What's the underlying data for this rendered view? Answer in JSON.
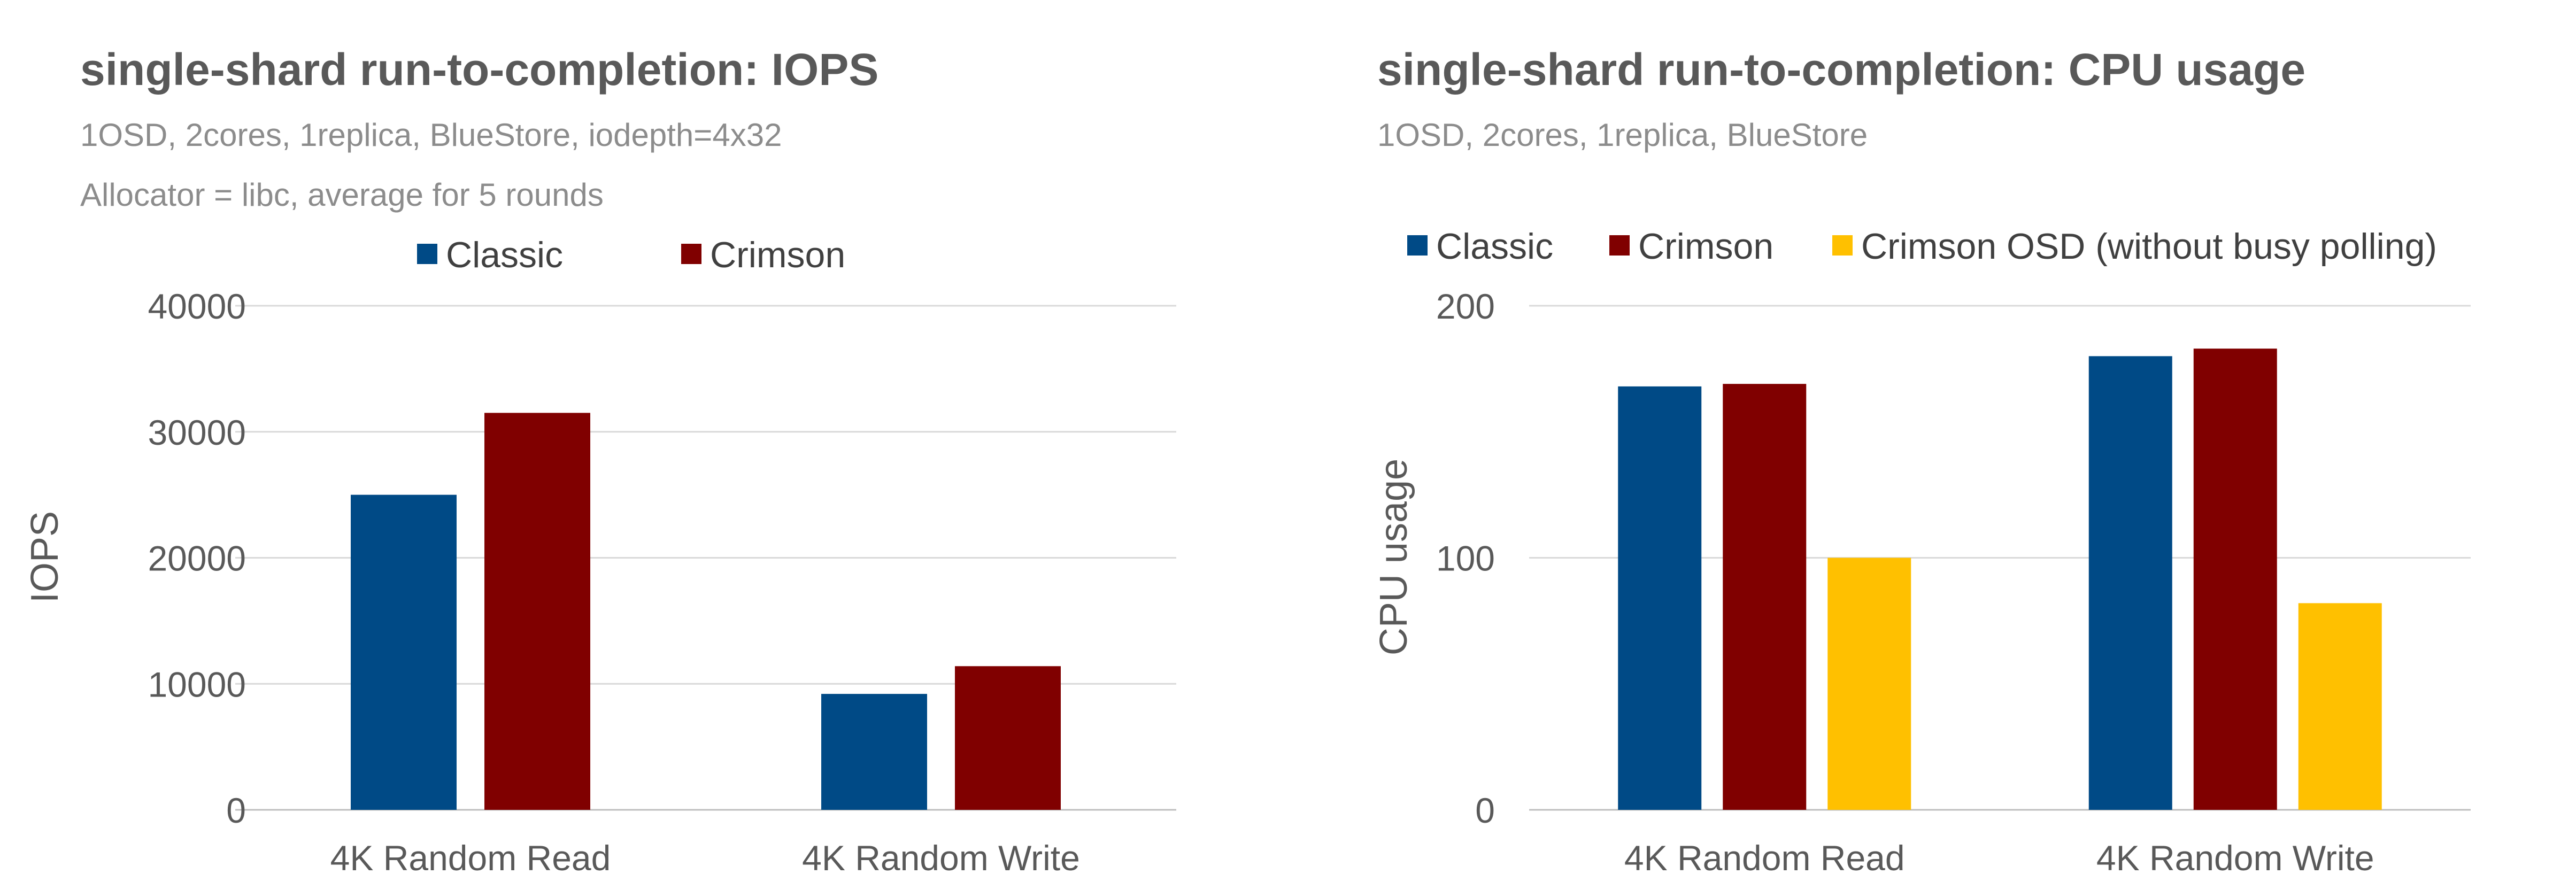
{
  "chart_data": [
    {
      "type": "bar",
      "title": "single-shard run-to-completion: IOPS",
      "subtitles": [
        "1OSD, 2cores, 1replica, BlueStore, iodepth=4x32",
        "Allocator = libc, average for 5 rounds"
      ],
      "xlabel": "",
      "ylabel": "IOPS",
      "categories": [
        "4K Random Read",
        "4K Random Write"
      ],
      "series": [
        {
          "name": "Classic",
          "color": "#004A86",
          "values": [
            25000,
            9200
          ]
        },
        {
          "name": "Crimson",
          "color": "#800000",
          "values": [
            31500,
            11400
          ]
        }
      ],
      "ylim": [
        0,
        40000
      ],
      "yticks": [
        "0",
        "10000",
        "20000",
        "30000",
        "40000"
      ],
      "grid": true,
      "legend": "top"
    },
    {
      "type": "bar",
      "title": "single-shard run-to-completion: CPU usage",
      "subtitles": [
        "1OSD, 2cores, 1replica, BlueStore"
      ],
      "xlabel": "",
      "ylabel": "CPU usage",
      "categories": [
        "4K Random Read",
        "4K Random Write"
      ],
      "series": [
        {
          "name": "Classic",
          "color": "#004A86",
          "values": [
            168,
            180
          ]
        },
        {
          "name": "Crimson",
          "color": "#800000",
          "values": [
            169,
            183
          ]
        },
        {
          "name": "Crimson OSD (without busy polling)",
          "color": "#FFC000",
          "values": [
            100,
            82
          ]
        }
      ],
      "ylim": [
        0,
        200
      ],
      "yticks": [
        "0",
        "100",
        "200"
      ],
      "grid": true,
      "legend": "top"
    }
  ]
}
